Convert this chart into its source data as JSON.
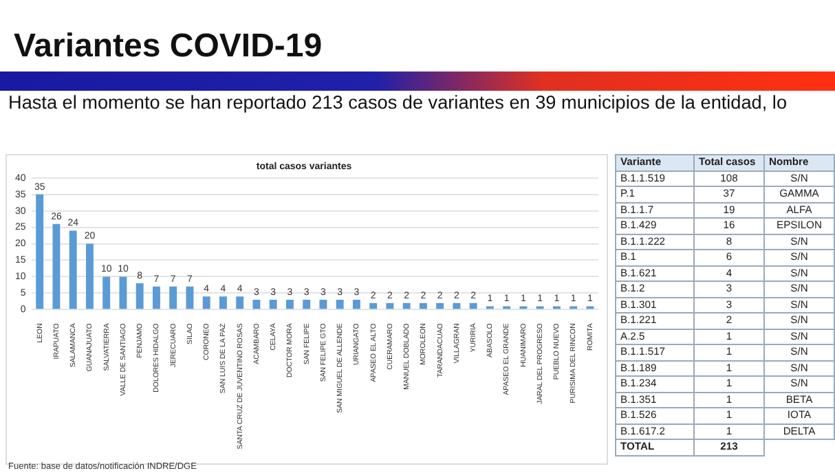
{
  "chart_data": [
    {
      "type": "bar",
      "title": "total casos variantes",
      "annotations": [
        "Variantes COVID-19",
        "Hasta el momento se han reportado 213 casos de variantes en 39 municipios de la entidad, lo",
        "Fuente: base de datos/notificación INDRE/DGE"
      ],
      "categories": [
        "LEON",
        "IRAPUATO",
        "SALAMANCA",
        "GUANAJUATO",
        "SALVATIERRA",
        "VALLE DE SANTIAGO",
        "PENJAMO",
        "DOLORES HIDALGO",
        "JERECUARO",
        "SILAO",
        "CORONEO",
        "SAN LUIS DE LA PAZ",
        "SANTA CRUZ DE JUVENTINO ROSAS",
        "ACAMBARO",
        "CELAYA",
        "DOCTOR MORA",
        "SAN FELIPE",
        "SAN FELIPE GTO",
        "SAN MIGUEL DE ALLENDE",
        "URIANGATO",
        "APASEO EL ALTO",
        "CUERAMARO",
        "MANUEL DOBLADO",
        "MOROLEON",
        "TARANDACUAO",
        "VILLAGRAN",
        "YURIRIA",
        "ABASOLO",
        "APASEO EL GRANDE",
        "HUANIMARO",
        "JARAL DEL PROGRESO",
        "PUEBLO NUEVO",
        "PURISIMA DEL RINCON",
        "ROMITA"
      ],
      "values": [
        35,
        26,
        24,
        20,
        10,
        10,
        8,
        7,
        7,
        7,
        4,
        4,
        4,
        3,
        3,
        3,
        3,
        3,
        3,
        3,
        2,
        2,
        2,
        2,
        2,
        2,
        2,
        1,
        1,
        1,
        1,
        1,
        1,
        1
      ],
      "color": "#5b9bd5",
      "ylim": [
        0,
        40
      ],
      "yticks": [
        0,
        5,
        10,
        15,
        20,
        25,
        30,
        35,
        40
      ],
      "grid": "y",
      "data_labels": true
    },
    {
      "type": "other",
      "ylabel": "Variante",
      "categories": [
        "Total casos",
        "Nombre"
      ],
      "y_categories": [
        "B.1.1.519",
        "P.1",
        "B.1.1.7",
        "B.1.429",
        "B.1.1.222",
        "B.1",
        "B.1.621",
        "B.1.2",
        "B.1.301",
        "B.1.221",
        "A.2.5",
        "B.1.1.517",
        "B.1.189",
        "B.1.234",
        "B.1.351",
        "B.1.526",
        "B.1.617.2",
        "TOTAL"
      ],
      "cell_labels": [
        [
          "108",
          "S/N"
        ],
        [
          "37",
          "GAMMA"
        ],
        [
          "19",
          "ALFA"
        ],
        [
          "16",
          "EPSILON"
        ],
        [
          "8",
          "S/N"
        ],
        [
          "6",
          "S/N"
        ],
        [
          "4",
          "S/N"
        ],
        [
          "3",
          "S/N"
        ],
        [
          "3",
          "S/N"
        ],
        [
          "2",
          "S/N"
        ],
        [
          "1",
          "S/N"
        ],
        [
          "1",
          "S/N"
        ],
        [
          "1",
          "S/N"
        ],
        [
          "1",
          "S/N"
        ],
        [
          "1",
          "BETA"
        ],
        [
          "1",
          "IOTA"
        ],
        [
          "1",
          "DELTA"
        ],
        [
          "213",
          null
        ]
      ]
    }
  ]
}
